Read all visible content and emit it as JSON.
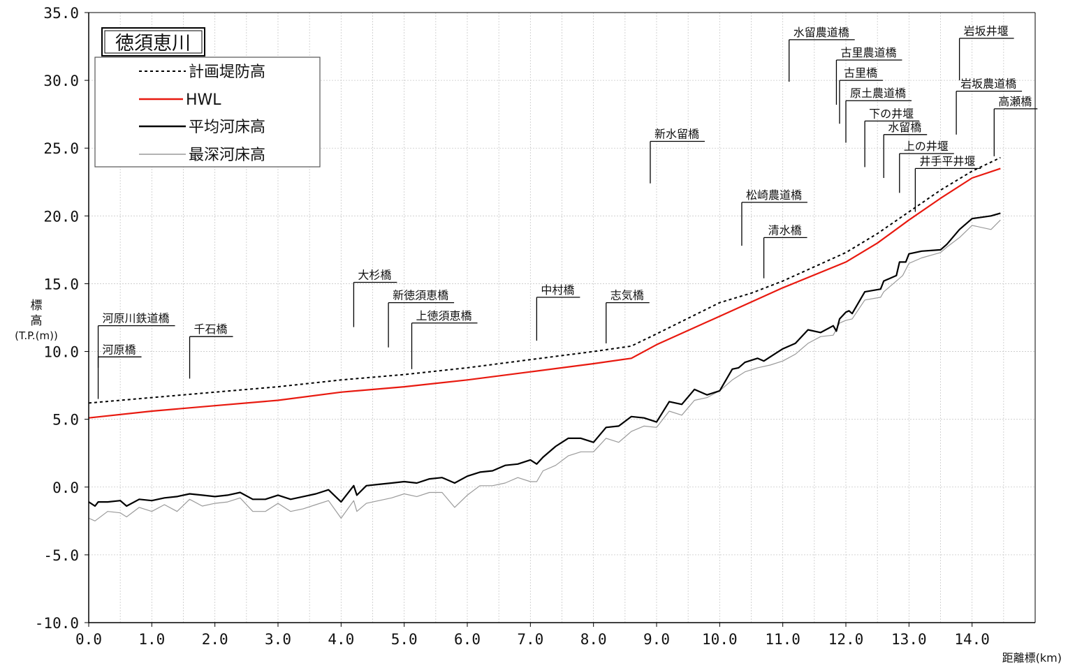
{
  "chart_data": {
    "type": "line",
    "title": "徳須恵川",
    "ylabel_chars": [
      "標",
      "高"
    ],
    "ylabel_unit": "(T.P.(m))",
    "xlabel": "距離標(km)",
    "xlim": [
      0,
      15
    ],
    "ylim": [
      -10,
      35
    ],
    "x_ticks": [
      0,
      1,
      2,
      3,
      4,
      5,
      6,
      7,
      8,
      9,
      10,
      11,
      12,
      13,
      14
    ],
    "x_tick_labels": [
      "0.0",
      "1.0",
      "2.0",
      "3.0",
      "4.0",
      "5.0",
      "6.0",
      "7.0",
      "8.0",
      "9.0",
      "10.0",
      "11.0",
      "12.0",
      "13.0",
      "14.0"
    ],
    "y_ticks": [
      -10,
      -5,
      0,
      5,
      10,
      15,
      20,
      25,
      30,
      35
    ],
    "y_tick_labels": [
      "-10.0",
      "-5.0",
      "0.0",
      "5.0",
      "10.0",
      "15.0",
      "20.0",
      "25.0",
      "30.0",
      "35.0"
    ],
    "grid": true,
    "legend_position": "top-left",
    "series": [
      {
        "name": "計画堤防高",
        "style": "dashed",
        "color": "#000000",
        "points": [
          [
            0,
            6.2
          ],
          [
            0.5,
            6.4
          ],
          [
            1,
            6.6
          ],
          [
            2,
            7.0
          ],
          [
            3,
            7.4
          ],
          [
            4,
            7.9
          ],
          [
            5,
            8.3
          ],
          [
            6,
            8.8
          ],
          [
            7,
            9.4
          ],
          [
            8,
            10.0
          ],
          [
            8.6,
            10.4
          ],
          [
            9,
            11.3
          ],
          [
            10,
            13.6
          ],
          [
            10.5,
            14.3
          ],
          [
            11,
            15.2
          ],
          [
            12,
            17.3
          ],
          [
            12.5,
            18.7
          ],
          [
            13,
            20.3
          ],
          [
            13.5,
            21.9
          ],
          [
            14,
            23.3
          ],
          [
            14.45,
            24.3
          ]
        ]
      },
      {
        "name": "HWL",
        "style": "solid",
        "color": "#e8190f",
        "points": [
          [
            0,
            5.1
          ],
          [
            1,
            5.6
          ],
          [
            2,
            6.0
          ],
          [
            3,
            6.4
          ],
          [
            4,
            7.0
          ],
          [
            5,
            7.4
          ],
          [
            6,
            7.9
          ],
          [
            7,
            8.5
          ],
          [
            8,
            9.1
          ],
          [
            8.6,
            9.5
          ],
          [
            9,
            10.5
          ],
          [
            10,
            12.6
          ],
          [
            11,
            14.7
          ],
          [
            12,
            16.6
          ],
          [
            12.5,
            18.0
          ],
          [
            13,
            19.7
          ],
          [
            13.5,
            21.3
          ],
          [
            14,
            22.8
          ],
          [
            14.45,
            23.5
          ]
        ]
      },
      {
        "name": "平均河床高",
        "style": "solid",
        "color": "#000000",
        "points": [
          [
            0,
            -1.1
          ],
          [
            0.1,
            -1.4
          ],
          [
            0.15,
            -1.1
          ],
          [
            0.3,
            -1.1
          ],
          [
            0.5,
            -1.0
          ],
          [
            0.6,
            -1.4
          ],
          [
            0.8,
            -0.9
          ],
          [
            1.0,
            -1.0
          ],
          [
            1.2,
            -0.8
          ],
          [
            1.4,
            -0.7
          ],
          [
            1.6,
            -0.5
          ],
          [
            1.8,
            -0.6
          ],
          [
            2.0,
            -0.7
          ],
          [
            2.2,
            -0.6
          ],
          [
            2.4,
            -0.4
          ],
          [
            2.6,
            -0.9
          ],
          [
            2.8,
            -0.9
          ],
          [
            3.0,
            -0.6
          ],
          [
            3.2,
            -0.9
          ],
          [
            3.4,
            -0.7
          ],
          [
            3.6,
            -0.5
          ],
          [
            3.8,
            -0.2
          ],
          [
            4.0,
            -1.1
          ],
          [
            4.2,
            0.1
          ],
          [
            4.25,
            -0.6
          ],
          [
            4.4,
            0.1
          ],
          [
            4.6,
            0.2
          ],
          [
            4.8,
            0.3
          ],
          [
            5.0,
            0.4
          ],
          [
            5.2,
            0.3
          ],
          [
            5.4,
            0.6
          ],
          [
            5.6,
            0.7
          ],
          [
            5.8,
            0.3
          ],
          [
            6.0,
            0.8
          ],
          [
            6.2,
            1.1
          ],
          [
            6.4,
            1.2
          ],
          [
            6.6,
            1.6
          ],
          [
            6.8,
            1.7
          ],
          [
            7.0,
            2.0
          ],
          [
            7.1,
            1.7
          ],
          [
            7.2,
            2.2
          ],
          [
            7.4,
            3.0
          ],
          [
            7.6,
            3.6
          ],
          [
            7.8,
            3.6
          ],
          [
            8.0,
            3.3
          ],
          [
            8.2,
            4.4
          ],
          [
            8.4,
            4.5
          ],
          [
            8.6,
            5.2
          ],
          [
            8.8,
            5.1
          ],
          [
            9.0,
            4.8
          ],
          [
            9.2,
            6.3
          ],
          [
            9.4,
            6.1
          ],
          [
            9.6,
            7.2
          ],
          [
            9.8,
            6.8
          ],
          [
            10.0,
            7.1
          ],
          [
            10.2,
            8.7
          ],
          [
            10.3,
            8.8
          ],
          [
            10.4,
            9.2
          ],
          [
            10.6,
            9.5
          ],
          [
            10.7,
            9.3
          ],
          [
            10.8,
            9.6
          ],
          [
            11.0,
            10.2
          ],
          [
            11.2,
            10.6
          ],
          [
            11.4,
            11.6
          ],
          [
            11.6,
            11.4
          ],
          [
            11.8,
            11.9
          ],
          [
            11.85,
            11.5
          ],
          [
            11.9,
            12.4
          ],
          [
            12.0,
            12.9
          ],
          [
            12.05,
            13.0
          ],
          [
            12.1,
            12.8
          ],
          [
            12.3,
            14.4
          ],
          [
            12.55,
            14.6
          ],
          [
            12.6,
            15.2
          ],
          [
            12.8,
            15.6
          ],
          [
            12.85,
            16.6
          ],
          [
            12.95,
            16.6
          ],
          [
            13.0,
            17.2
          ],
          [
            13.2,
            17.4
          ],
          [
            13.5,
            17.5
          ],
          [
            13.6,
            17.9
          ],
          [
            13.8,
            19.0
          ],
          [
            14.0,
            19.8
          ],
          [
            14.3,
            20.0
          ],
          [
            14.45,
            20.2
          ]
        ]
      },
      {
        "name": "最深河床高",
        "style": "solid",
        "color": "#9a9a9a",
        "points": [
          [
            0,
            -2.3
          ],
          [
            0.1,
            -2.5
          ],
          [
            0.3,
            -1.8
          ],
          [
            0.5,
            -1.9
          ],
          [
            0.6,
            -2.2
          ],
          [
            0.8,
            -1.5
          ],
          [
            1.0,
            -1.8
          ],
          [
            1.2,
            -1.3
          ],
          [
            1.4,
            -1.8
          ],
          [
            1.6,
            -0.9
          ],
          [
            1.8,
            -1.4
          ],
          [
            2.0,
            -1.2
          ],
          [
            2.2,
            -1.1
          ],
          [
            2.4,
            -0.8
          ],
          [
            2.6,
            -1.8
          ],
          [
            2.8,
            -1.8
          ],
          [
            3.0,
            -1.2
          ],
          [
            3.2,
            -1.8
          ],
          [
            3.4,
            -1.6
          ],
          [
            3.6,
            -1.3
          ],
          [
            3.8,
            -1.0
          ],
          [
            4.0,
            -2.3
          ],
          [
            4.2,
            -1.0
          ],
          [
            4.25,
            -1.8
          ],
          [
            4.4,
            -1.2
          ],
          [
            4.6,
            -1.0
          ],
          [
            4.8,
            -0.8
          ],
          [
            5.0,
            -0.5
          ],
          [
            5.2,
            -0.7
          ],
          [
            5.4,
            -0.4
          ],
          [
            5.6,
            -0.4
          ],
          [
            5.8,
            -1.5
          ],
          [
            6.0,
            -0.6
          ],
          [
            6.2,
            0.1
          ],
          [
            6.4,
            0.1
          ],
          [
            6.6,
            0.3
          ],
          [
            6.8,
            0.7
          ],
          [
            7.0,
            0.4
          ],
          [
            7.1,
            0.4
          ],
          [
            7.2,
            1.2
          ],
          [
            7.4,
            1.6
          ],
          [
            7.6,
            2.3
          ],
          [
            7.8,
            2.6
          ],
          [
            8.0,
            2.6
          ],
          [
            8.2,
            3.6
          ],
          [
            8.4,
            3.3
          ],
          [
            8.6,
            4.1
          ],
          [
            8.8,
            4.5
          ],
          [
            9.0,
            4.4
          ],
          [
            9.2,
            5.6
          ],
          [
            9.4,
            5.3
          ],
          [
            9.6,
            6.4
          ],
          [
            9.8,
            6.6
          ],
          [
            10.0,
            7.1
          ],
          [
            10.2,
            7.9
          ],
          [
            10.4,
            8.5
          ],
          [
            10.6,
            8.8
          ],
          [
            10.8,
            9.0
          ],
          [
            11.0,
            9.3
          ],
          [
            11.2,
            9.8
          ],
          [
            11.4,
            10.6
          ],
          [
            11.6,
            11.1
          ],
          [
            11.8,
            11.2
          ],
          [
            11.9,
            12.1
          ],
          [
            12.0,
            12.3
          ],
          [
            12.1,
            12.4
          ],
          [
            12.3,
            13.8
          ],
          [
            12.55,
            14.0
          ],
          [
            12.6,
            14.4
          ],
          [
            12.8,
            15.2
          ],
          [
            12.9,
            15.6
          ],
          [
            13.0,
            16.5
          ],
          [
            13.2,
            16.9
          ],
          [
            13.5,
            17.3
          ],
          [
            13.6,
            17.7
          ],
          [
            13.8,
            18.4
          ],
          [
            14.0,
            19.3
          ],
          [
            14.3,
            19.0
          ],
          [
            14.45,
            19.7
          ]
        ]
      }
    ],
    "bridges": [
      {
        "name": "河原川鉄道橋",
        "x": 0.15,
        "y_base": 8.8,
        "y_top": 11.9,
        "side": "right"
      },
      {
        "name": "河原橋",
        "x": 0.15,
        "y_base": 6.5,
        "y_top": 9.6,
        "side": "right"
      },
      {
        "name": "千石橋",
        "x": 1.6,
        "y_base": 8.0,
        "y_top": 11.1,
        "side": "right"
      },
      {
        "name": "大杉橋",
        "x": 4.2,
        "y_base": 11.8,
        "y_top": 15.1,
        "side": "right"
      },
      {
        "name": "新徳須恵橋",
        "x": 4.75,
        "y_base": 10.3,
        "y_top": 13.6,
        "side": "right"
      },
      {
        "name": "上徳須恵橋",
        "x": 5.12,
        "y_base": 8.7,
        "y_top": 12.1,
        "side": "right"
      },
      {
        "name": "中村橋",
        "x": 7.1,
        "y_base": 10.8,
        "y_top": 14.0,
        "side": "right"
      },
      {
        "name": "志気橋",
        "x": 8.2,
        "y_base": 10.6,
        "y_top": 13.6,
        "side": "right"
      },
      {
        "name": "新水留橋",
        "x": 8.9,
        "y_base": 22.4,
        "y_top": 25.5,
        "side": "right"
      },
      {
        "name": "松崎農道橋",
        "x": 10.35,
        "y_base": 17.8,
        "y_top": 21.0,
        "side": "right"
      },
      {
        "name": "清水橋",
        "x": 10.7,
        "y_base": 15.4,
        "y_top": 18.4,
        "side": "right"
      },
      {
        "name": "水留農道橋",
        "x": 11.1,
        "y_base": 29.9,
        "y_top": 33.0,
        "side": "right"
      },
      {
        "name": "古里農道橋",
        "x": 11.85,
        "y_base": 28.2,
        "y_top": 31.5,
        "side": "right"
      },
      {
        "name": "古里橋",
        "x": 11.9,
        "y_base": 26.8,
        "y_top": 30.0,
        "side": "right"
      },
      {
        "name": "原土農道橋",
        "x": 12.0,
        "y_base": 25.4,
        "y_top": 28.5,
        "side": "right"
      },
      {
        "name": "下の井堰",
        "x": 12.3,
        "y_base": 23.6,
        "y_top": 27.0,
        "side": "right"
      },
      {
        "name": "水留橋",
        "x": 12.6,
        "y_base": 22.8,
        "y_top": 26.0,
        "side": "right"
      },
      {
        "name": "上の井堰",
        "x": 12.85,
        "y_base": 21.7,
        "y_top": 24.6,
        "side": "right"
      },
      {
        "name": "井手平井堰",
        "x": 13.1,
        "y_base": 20.3,
        "y_top": 23.5,
        "side": "right"
      },
      {
        "name": "岩坂井堰",
        "x": 13.8,
        "y_base": 30.0,
        "y_top": 33.1,
        "side": "right"
      },
      {
        "name": "岩坂農道橋",
        "x": 13.75,
        "y_base": 26.0,
        "y_top": 29.2,
        "side": "right"
      },
      {
        "name": "高瀬橋",
        "x": 14.35,
        "y_base": 24.4,
        "y_top": 27.9,
        "side": "right"
      }
    ]
  }
}
